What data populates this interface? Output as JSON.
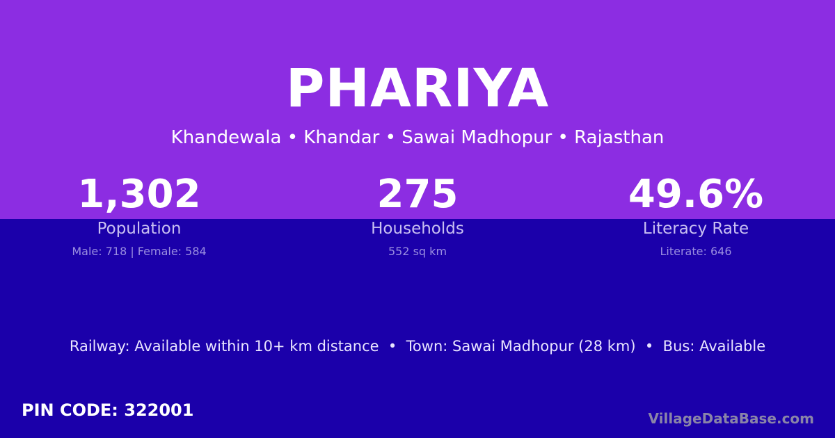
{
  "village": {
    "name": "PHARIYA",
    "location": "Khandewala • Khandar • Sawai Madhopur • Rajasthan"
  },
  "stats": [
    {
      "value": "1,302",
      "label": "Population",
      "detail": "Male: 718 | Female: 584"
    },
    {
      "value": "275",
      "label": "Households",
      "detail": "552 sq km"
    },
    {
      "value": "49.6%",
      "label": "Literacy Rate",
      "detail": "Literate: 646"
    }
  ],
  "facts": "Railway: Available within 10+ km distance  •  Town: Sawai Madhopur (28 km)  •  Bus: Available",
  "pin": "PIN CODE: 322001",
  "brand": "VillageDataBase.com",
  "colors": {
    "top": "#8c2de2",
    "bottom": "#1b00aa"
  }
}
